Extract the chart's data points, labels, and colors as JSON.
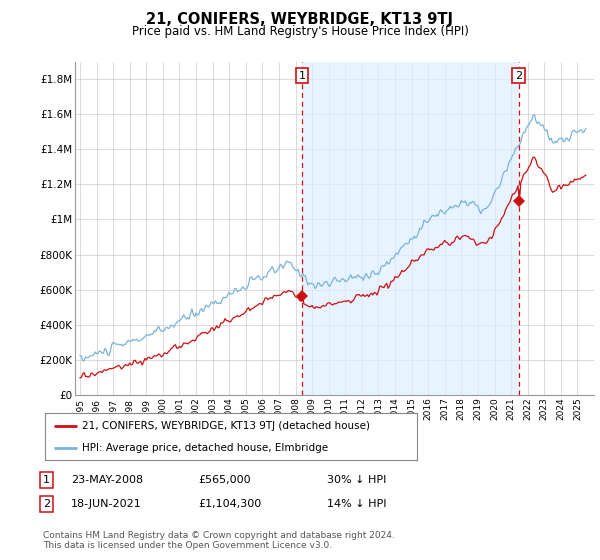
{
  "title": "21, CONIFERS, WEYBRIDGE, KT13 9TJ",
  "subtitle": "Price paid vs. HM Land Registry's House Price Index (HPI)",
  "ylim": [
    0,
    1900000
  ],
  "yticks": [
    0,
    200000,
    400000,
    600000,
    800000,
    1000000,
    1200000,
    1400000,
    1600000,
    1800000
  ],
  "ytick_labels": [
    "£0",
    "£200K",
    "£400K",
    "£600K",
    "£800K",
    "£1M",
    "£1.2M",
    "£1.4M",
    "£1.6M",
    "£1.8M"
  ],
  "hpi_color": "#7ab3d9",
  "price_color": "#cc1111",
  "vline_color": "#cc1111",
  "shade_color": "#ddeeff",
  "marker1_date": 2008.38,
  "marker1_price": 565000,
  "marker2_date": 2021.46,
  "marker2_price": 1104300,
  "annotation1": "1",
  "annotation2": "2",
  "legend_label1": "21, CONIFERS, WEYBRIDGE, KT13 9TJ (detached house)",
  "legend_label2": "HPI: Average price, detached house, Elmbridge",
  "note1_label": "1",
  "note1_date": "23-MAY-2008",
  "note1_price": "£565,000",
  "note1_hpi": "30% ↓ HPI",
  "note2_label": "2",
  "note2_date": "18-JUN-2021",
  "note2_price": "£1,104,300",
  "note2_hpi": "14% ↓ HPI",
  "footer": "Contains HM Land Registry data © Crown copyright and database right 2024.\nThis data is licensed under the Open Government Licence v3.0.",
  "background_color": "#ffffff",
  "grid_color": "#cccccc"
}
